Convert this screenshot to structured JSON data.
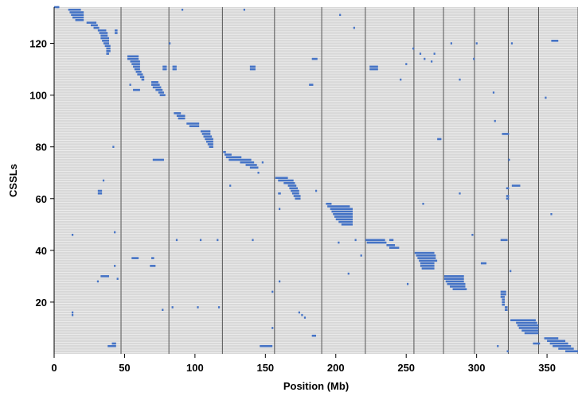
{
  "chart_data": {
    "type": "segment-heatmap",
    "xlabel": "Position (Mb)",
    "ylabel": "CSSLs",
    "xlim": [
      0,
      372
    ],
    "ylim": [
      0,
      134
    ],
    "xticks": [
      0,
      50,
      100,
      150,
      200,
      250,
      300,
      350
    ],
    "yticks": [
      20,
      40,
      60,
      80,
      100,
      120
    ],
    "chromosome_boundaries": [
      47.5,
      81.5,
      119.5,
      156.5,
      190,
      221,
      255.5,
      276.5,
      298.5,
      322.5,
      344,
      372
    ],
    "colors": {
      "background": "#d8d8d8",
      "row_line": "#f0f0f0",
      "boundary": "#555555",
      "segment": "#4472c4"
    },
    "segments": [
      {
        "row": 134,
        "x0": 0,
        "x1": 3
      },
      {
        "row": 133,
        "x0": 10,
        "x1": 19
      },
      {
        "row": 132,
        "x0": 11,
        "x1": 21
      },
      {
        "row": 131,
        "x0": 12,
        "x1": 21
      },
      {
        "row": 130,
        "x0": 13,
        "x1": 21
      },
      {
        "row": 129,
        "x0": 15,
        "x1": 21
      },
      {
        "row": 128,
        "x0": 23,
        "x1": 30
      },
      {
        "row": 127,
        "x0": 26,
        "x1": 31
      },
      {
        "row": 126,
        "x0": 28,
        "x1": 32
      },
      {
        "row": 125,
        "x0": 31,
        "x1": 37
      },
      {
        "row": 124,
        "x0": 32,
        "x1": 38
      },
      {
        "row": 123,
        "x0": 33,
        "x1": 38
      },
      {
        "row": 122,
        "x0": 33,
        "x1": 39
      },
      {
        "row": 121,
        "x0": 34,
        "x1": 39
      },
      {
        "row": 120,
        "x0": 35,
        "x1": 39
      },
      {
        "row": 119,
        "x0": 36,
        "x1": 40
      },
      {
        "row": 118,
        "x0": 37,
        "x1": 40
      },
      {
        "row": 117,
        "x0": 37,
        "x1": 40
      },
      {
        "row": 116,
        "x0": 37,
        "x1": 39
      },
      {
        "row": 125,
        "x0": 43,
        "x1": 45
      },
      {
        "row": 124,
        "x0": 43,
        "x1": 45
      },
      {
        "row": 115,
        "x0": 52,
        "x1": 60
      },
      {
        "row": 114,
        "x0": 52,
        "x1": 60
      },
      {
        "row": 113,
        "x0": 54,
        "x1": 61
      },
      {
        "row": 112,
        "x0": 55,
        "x1": 61
      },
      {
        "row": 111,
        "x0": 56,
        "x1": 61
      },
      {
        "row": 110,
        "x0": 57,
        "x1": 61
      },
      {
        "row": 109,
        "x0": 58,
        "x1": 62
      },
      {
        "row": 108,
        "x0": 59,
        "x1": 63
      },
      {
        "row": 107,
        "x0": 61,
        "x1": 64
      },
      {
        "row": 106,
        "x0": 62,
        "x1": 64
      },
      {
        "row": 102,
        "x0": 56,
        "x1": 61
      },
      {
        "row": 105,
        "x0": 69,
        "x1": 74
      },
      {
        "row": 104,
        "x0": 69,
        "x1": 75
      },
      {
        "row": 103,
        "x0": 70,
        "x1": 76
      },
      {
        "row": 102,
        "x0": 72,
        "x1": 77
      },
      {
        "row": 101,
        "x0": 74,
        "x1": 78
      },
      {
        "row": 100,
        "x0": 75,
        "x1": 79
      },
      {
        "row": 75,
        "x0": 70,
        "x1": 78
      },
      {
        "row": 93,
        "x0": 85,
        "x1": 90
      },
      {
        "row": 92,
        "x0": 87,
        "x1": 93
      },
      {
        "row": 91,
        "x0": 88,
        "x1": 93
      },
      {
        "row": 89,
        "x0": 94,
        "x1": 103
      },
      {
        "row": 88,
        "x0": 96,
        "x1": 103
      },
      {
        "row": 86,
        "x0": 104,
        "x1": 111
      },
      {
        "row": 85,
        "x0": 105,
        "x1": 111
      },
      {
        "row": 84,
        "x0": 106,
        "x1": 112
      },
      {
        "row": 83,
        "x0": 107,
        "x1": 113
      },
      {
        "row": 82,
        "x0": 108,
        "x1": 113
      },
      {
        "row": 81,
        "x0": 109,
        "x1": 113
      },
      {
        "row": 80,
        "x0": 110,
        "x1": 113
      },
      {
        "row": 78,
        "x0": 120,
        "x1": 122
      },
      {
        "row": 77,
        "x0": 121,
        "x1": 126
      },
      {
        "row": 76,
        "x0": 122,
        "x1": 133
      },
      {
        "row": 75,
        "x0": 124,
        "x1": 140
      },
      {
        "row": 74,
        "x0": 132,
        "x1": 142
      },
      {
        "row": 73,
        "x0": 136,
        "x1": 144
      },
      {
        "row": 72,
        "x0": 139,
        "x1": 145
      },
      {
        "row": 68,
        "x0": 157,
        "x1": 166
      },
      {
        "row": 67,
        "x0": 159,
        "x1": 170
      },
      {
        "row": 66,
        "x0": 163,
        "x1": 171
      },
      {
        "row": 65,
        "x0": 166,
        "x1": 172
      },
      {
        "row": 64,
        "x0": 167,
        "x1": 173
      },
      {
        "row": 63,
        "x0": 168,
        "x1": 174
      },
      {
        "row": 62,
        "x0": 169,
        "x1": 174
      },
      {
        "row": 61,
        "x0": 170,
        "x1": 175
      },
      {
        "row": 60,
        "x0": 171,
        "x1": 175
      },
      {
        "row": 58,
        "x0": 193,
        "x1": 197
      },
      {
        "row": 57,
        "x0": 194,
        "x1": 210
      },
      {
        "row": 56,
        "x0": 196,
        "x1": 212
      },
      {
        "row": 55,
        "x0": 197,
        "x1": 212
      },
      {
        "row": 54,
        "x0": 198,
        "x1": 212
      },
      {
        "row": 53,
        "x0": 199,
        "x1": 212
      },
      {
        "row": 52,
        "x0": 200,
        "x1": 212
      },
      {
        "row": 51,
        "x0": 202,
        "x1": 212
      },
      {
        "row": 50,
        "x0": 204,
        "x1": 212
      },
      {
        "row": 44,
        "x0": 221,
        "x1": 235
      },
      {
        "row": 43,
        "x0": 222,
        "x1": 236
      },
      {
        "row": 44,
        "x0": 238,
        "x1": 241
      },
      {
        "row": 42,
        "x0": 236,
        "x1": 242
      },
      {
        "row": 41,
        "x0": 238,
        "x1": 245
      },
      {
        "row": 39,
        "x0": 256,
        "x1": 270
      },
      {
        "row": 38,
        "x0": 257,
        "x1": 271
      },
      {
        "row": 37,
        "x0": 258,
        "x1": 271
      },
      {
        "row": 36,
        "x0": 259,
        "x1": 272
      },
      {
        "row": 35,
        "x0": 260,
        "x1": 270
      },
      {
        "row": 34,
        "x0": 260,
        "x1": 270
      },
      {
        "row": 33,
        "x0": 261,
        "x1": 270
      },
      {
        "row": 30,
        "x0": 277,
        "x1": 291
      },
      {
        "row": 29,
        "x0": 277,
        "x1": 291
      },
      {
        "row": 28,
        "x0": 278,
        "x1": 291
      },
      {
        "row": 27,
        "x0": 279,
        "x1": 292
      },
      {
        "row": 26,
        "x0": 281,
        "x1": 292
      },
      {
        "row": 25,
        "x0": 283,
        "x1": 293
      },
      {
        "row": 24,
        "x0": 317,
        "x1": 321
      },
      {
        "row": 23,
        "x0": 317,
        "x1": 321
      },
      {
        "row": 22,
        "x0": 317,
        "x1": 320
      },
      {
        "row": 21,
        "x0": 318,
        "x1": 320
      },
      {
        "row": 20,
        "x0": 318,
        "x1": 320
      },
      {
        "row": 19,
        "x0": 318,
        "x1": 320
      },
      {
        "row": 18,
        "x0": 320,
        "x1": 322
      },
      {
        "row": 17,
        "x0": 320,
        "x1": 322
      },
      {
        "row": 13,
        "x0": 324,
        "x1": 342
      },
      {
        "row": 12,
        "x0": 328,
        "x1": 343
      },
      {
        "row": 11,
        "x0": 329,
        "x1": 344
      },
      {
        "row": 10,
        "x0": 330,
        "x1": 344
      },
      {
        "row": 9,
        "x0": 332,
        "x1": 344
      },
      {
        "row": 8,
        "x0": 334,
        "x1": 344
      },
      {
        "row": 6,
        "x0": 348,
        "x1": 358
      },
      {
        "row": 5,
        "x0": 350,
        "x1": 363
      },
      {
        "row": 4,
        "x0": 352,
        "x1": 365
      },
      {
        "row": 3,
        "x0": 354,
        "x1": 367
      },
      {
        "row": 2,
        "x0": 358,
        "x1": 369
      },
      {
        "row": 1,
        "x0": 363,
        "x1": 372
      },
      {
        "row": 121,
        "x0": 353,
        "x1": 358
      },
      {
        "row": 111,
        "x0": 224,
        "x1": 230
      },
      {
        "row": 110,
        "x0": 224,
        "x1": 230
      },
      {
        "row": 111,
        "x0": 77,
        "x1": 80
      },
      {
        "row": 110,
        "x0": 77,
        "x1": 80
      },
      {
        "row": 111,
        "x0": 84,
        "x1": 87
      },
      {
        "row": 110,
        "x0": 84,
        "x1": 87
      },
      {
        "row": 111,
        "x0": 139,
        "x1": 143
      },
      {
        "row": 110,
        "x0": 139,
        "x1": 143
      },
      {
        "row": 114,
        "x0": 183,
        "x1": 187
      },
      {
        "row": 104,
        "x0": 181,
        "x1": 184
      },
      {
        "row": 62,
        "x0": 159,
        "x1": 161
      },
      {
        "row": 63,
        "x0": 31,
        "x1": 34
      },
      {
        "row": 62,
        "x0": 31,
        "x1": 34
      },
      {
        "row": 64,
        "x0": 321,
        "x1": 323
      },
      {
        "row": 61,
        "x0": 321,
        "x1": 323
      },
      {
        "row": 60,
        "x0": 321,
        "x1": 323
      },
      {
        "row": 65,
        "x0": 325,
        "x1": 331
      },
      {
        "row": 37,
        "x0": 55,
        "x1": 60
      },
      {
        "row": 37,
        "x0": 69,
        "x1": 71
      },
      {
        "row": 34,
        "x0": 68,
        "x1": 72
      },
      {
        "row": 35,
        "x0": 303,
        "x1": 307
      },
      {
        "row": 30,
        "x0": 33,
        "x1": 39
      },
      {
        "row": 44,
        "x0": 317,
        "x1": 322
      },
      {
        "row": 85,
        "x0": 318,
        "x1": 323
      },
      {
        "row": 83,
        "x0": 272,
        "x1": 275
      },
      {
        "row": 7,
        "x0": 183,
        "x1": 186
      },
      {
        "row": 4,
        "x0": 340,
        "x1": 345
      },
      {
        "row": 3,
        "x0": 146,
        "x1": 155
      },
      {
        "row": 3,
        "x0": 38,
        "x1": 44
      },
      {
        "row": 4,
        "x0": 41,
        "x1": 44
      }
    ],
    "points": [
      {
        "row": 134,
        "x": 3
      },
      {
        "row": 133,
        "x": 91
      },
      {
        "row": 133,
        "x": 135
      },
      {
        "row": 131,
        "x": 203
      },
      {
        "row": 126,
        "x": 213
      },
      {
        "row": 120,
        "x": 282
      },
      {
        "row": 120,
        "x": 300
      },
      {
        "row": 120,
        "x": 325
      },
      {
        "row": 120,
        "x": 82
      },
      {
        "row": 118,
        "x": 255
      },
      {
        "row": 116,
        "x": 260
      },
      {
        "row": 116,
        "x": 270
      },
      {
        "row": 114,
        "x": 298
      },
      {
        "row": 114,
        "x": 263
      },
      {
        "row": 113,
        "x": 268
      },
      {
        "row": 112,
        "x": 250
      },
      {
        "row": 106,
        "x": 246
      },
      {
        "row": 106,
        "x": 288
      },
      {
        "row": 104,
        "x": 54
      },
      {
        "row": 101,
        "x": 312
      },
      {
        "row": 99,
        "x": 349
      },
      {
        "row": 90,
        "x": 313
      },
      {
        "row": 80,
        "x": 42
      },
      {
        "row": 75,
        "x": 323
      },
      {
        "row": 74,
        "x": 148
      },
      {
        "row": 70,
        "x": 145
      },
      {
        "row": 67,
        "x": 35
      },
      {
        "row": 65,
        "x": 125
      },
      {
        "row": 63,
        "x": 186
      },
      {
        "row": 62,
        "x": 288
      },
      {
        "row": 58,
        "x": 262
      },
      {
        "row": 56,
        "x": 160
      },
      {
        "row": 54,
        "x": 353
      },
      {
        "row": 47,
        "x": 43
      },
      {
        "row": 46,
        "x": 13
      },
      {
        "row": 46,
        "x": 297
      },
      {
        "row": 44,
        "x": 87
      },
      {
        "row": 44,
        "x": 214
      },
      {
        "row": 43,
        "x": 202
      },
      {
        "row": 44,
        "x": 104
      },
      {
        "row": 44,
        "x": 116
      },
      {
        "row": 44,
        "x": 141
      },
      {
        "row": 38,
        "x": 218
      },
      {
        "row": 32,
        "x": 324
      },
      {
        "row": 31,
        "x": 209
      },
      {
        "row": 29,
        "x": 45
      },
      {
        "row": 28,
        "x": 31
      },
      {
        "row": 28,
        "x": 160
      },
      {
        "row": 27,
        "x": 251
      },
      {
        "row": 24,
        "x": 155
      },
      {
        "row": 18,
        "x": 84
      },
      {
        "row": 18,
        "x": 102
      },
      {
        "row": 18,
        "x": 117
      },
      {
        "row": 17,
        "x": 77
      },
      {
        "row": 16,
        "x": 13
      },
      {
        "row": 16,
        "x": 174
      },
      {
        "row": 15,
        "x": 13
      },
      {
        "row": 15,
        "x": 176
      },
      {
        "row": 14,
        "x": 178
      },
      {
        "row": 12,
        "x": 341
      },
      {
        "row": 10,
        "x": 155
      },
      {
        "row": 3,
        "x": 315
      },
      {
        "row": 1,
        "x": 322
      },
      {
        "row": 34,
        "x": 43
      }
    ]
  }
}
